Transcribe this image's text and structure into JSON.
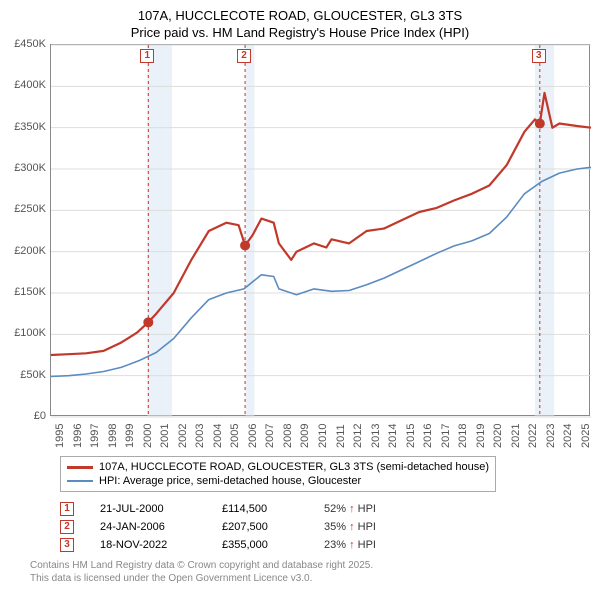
{
  "title_line1": "107A, HUCCLECOTE ROAD, GLOUCESTER, GL3 3TS",
  "title_line2": "Price paid vs. HM Land Registry's House Price Index (HPI)",
  "chart": {
    "type": "line",
    "x_start": 1995,
    "x_end": 2025.8,
    "y_min": 0,
    "y_max": 450000,
    "y_ticks": [
      "£0",
      "£50K",
      "£100K",
      "£150K",
      "£200K",
      "£250K",
      "£300K",
      "£350K",
      "£400K",
      "£450K"
    ],
    "x_ticks": [
      1995,
      1996,
      1997,
      1998,
      1999,
      2000,
      2001,
      2002,
      2003,
      2004,
      2005,
      2006,
      2007,
      2008,
      2009,
      2010,
      2011,
      2012,
      2013,
      2014,
      2015,
      2016,
      2017,
      2018,
      2019,
      2020,
      2021,
      2022,
      2023,
      2024,
      2025
    ],
    "grid_color": "#dddddd",
    "background_color": "#ffffff",
    "band_color": "#d9e6f2",
    "bands": [
      {
        "from": 2000.5,
        "to": 2001.9
      },
      {
        "from": 2006.1,
        "to": 2006.6
      },
      {
        "from": 2022.6,
        "to": 2023.7
      }
    ],
    "series": [
      {
        "name": "107A, HUCCLECOTE ROAD, GLOUCESTER, GL3 3TS (semi-detached house)",
        "color": "#c0392b",
        "width": 2.2,
        "pts": [
          [
            1995,
            75000
          ],
          [
            1996,
            76000
          ],
          [
            1997,
            77000
          ],
          [
            1998,
            80000
          ],
          [
            1999,
            90000
          ],
          [
            1999.9,
            102000
          ],
          [
            2000.55,
            114500
          ],
          [
            2001,
            125000
          ],
          [
            2002,
            150000
          ],
          [
            2003,
            190000
          ],
          [
            2004,
            225000
          ],
          [
            2005,
            235000
          ],
          [
            2005.7,
            232000
          ],
          [
            2006.07,
            207500
          ],
          [
            2006.5,
            220000
          ],
          [
            2007,
            240000
          ],
          [
            2007.7,
            235000
          ],
          [
            2008,
            210000
          ],
          [
            2008.7,
            190000
          ],
          [
            2009,
            200000
          ],
          [
            2010,
            210000
          ],
          [
            2010.7,
            205000
          ],
          [
            2011,
            215000
          ],
          [
            2012,
            210000
          ],
          [
            2013,
            225000
          ],
          [
            2014,
            228000
          ],
          [
            2015,
            238000
          ],
          [
            2016,
            248000
          ],
          [
            2017,
            253000
          ],
          [
            2018,
            262000
          ],
          [
            2019,
            270000
          ],
          [
            2020,
            280000
          ],
          [
            2021,
            305000
          ],
          [
            2022,
            345000
          ],
          [
            2022.6,
            360000
          ],
          [
            2022.88,
            355000
          ],
          [
            2023.15,
            392000
          ],
          [
            2023.6,
            350000
          ],
          [
            2024,
            355000
          ],
          [
            2025,
            352000
          ],
          [
            2025.8,
            350000
          ]
        ]
      },
      {
        "name": "HPI: Average price, semi-detached house, Gloucester",
        "color": "#5b8bbf",
        "width": 1.6,
        "pts": [
          [
            1995,
            49000
          ],
          [
            1996,
            50000
          ],
          [
            1997,
            52000
          ],
          [
            1998,
            55000
          ],
          [
            1999,
            60000
          ],
          [
            2000,
            68000
          ],
          [
            2001,
            78000
          ],
          [
            2002,
            95000
          ],
          [
            2003,
            120000
          ],
          [
            2004,
            142000
          ],
          [
            2005,
            150000
          ],
          [
            2006,
            155000
          ],
          [
            2007,
            172000
          ],
          [
            2007.7,
            170000
          ],
          [
            2008,
            155000
          ],
          [
            2009,
            148000
          ],
          [
            2010,
            155000
          ],
          [
            2011,
            152000
          ],
          [
            2012,
            153000
          ],
          [
            2013,
            160000
          ],
          [
            2014,
            168000
          ],
          [
            2015,
            178000
          ],
          [
            2016,
            188000
          ],
          [
            2017,
            198000
          ],
          [
            2018,
            207000
          ],
          [
            2019,
            213000
          ],
          [
            2020,
            222000
          ],
          [
            2021,
            242000
          ],
          [
            2022,
            270000
          ],
          [
            2023,
            285000
          ],
          [
            2024,
            295000
          ],
          [
            2025,
            300000
          ],
          [
            2025.8,
            302000
          ]
        ]
      }
    ],
    "sale_points": [
      {
        "x": 2000.55,
        "y": 114500
      },
      {
        "x": 2006.07,
        "y": 207500
      },
      {
        "x": 2022.88,
        "y": 355000
      }
    ],
    "marker_positions": [
      {
        "n": "1",
        "x": 2000.55
      },
      {
        "n": "2",
        "x": 2006.07
      },
      {
        "n": "3",
        "x": 2022.88
      }
    ]
  },
  "legend": {
    "row1": "107A, HUCCLECOTE ROAD, GLOUCESTER, GL3 3TS (semi-detached house)",
    "row2": "HPI: Average price, semi-detached house, Gloucester"
  },
  "notes": [
    {
      "n": "1",
      "date": "21-JUL-2000",
      "price": "£114,500",
      "hpi": "52% ↑ HPI"
    },
    {
      "n": "2",
      "date": "24-JAN-2006",
      "price": "£207,500",
      "hpi": "35% ↑ HPI"
    },
    {
      "n": "3",
      "date": "18-NOV-2022",
      "price": "£355,000",
      "hpi": "23% ↑ HPI"
    }
  ],
  "footer_line1": "Contains HM Land Registry data © Crown copyright and database right 2025.",
  "footer_line2": "This data is licensed under the Open Government Licence v3.0."
}
